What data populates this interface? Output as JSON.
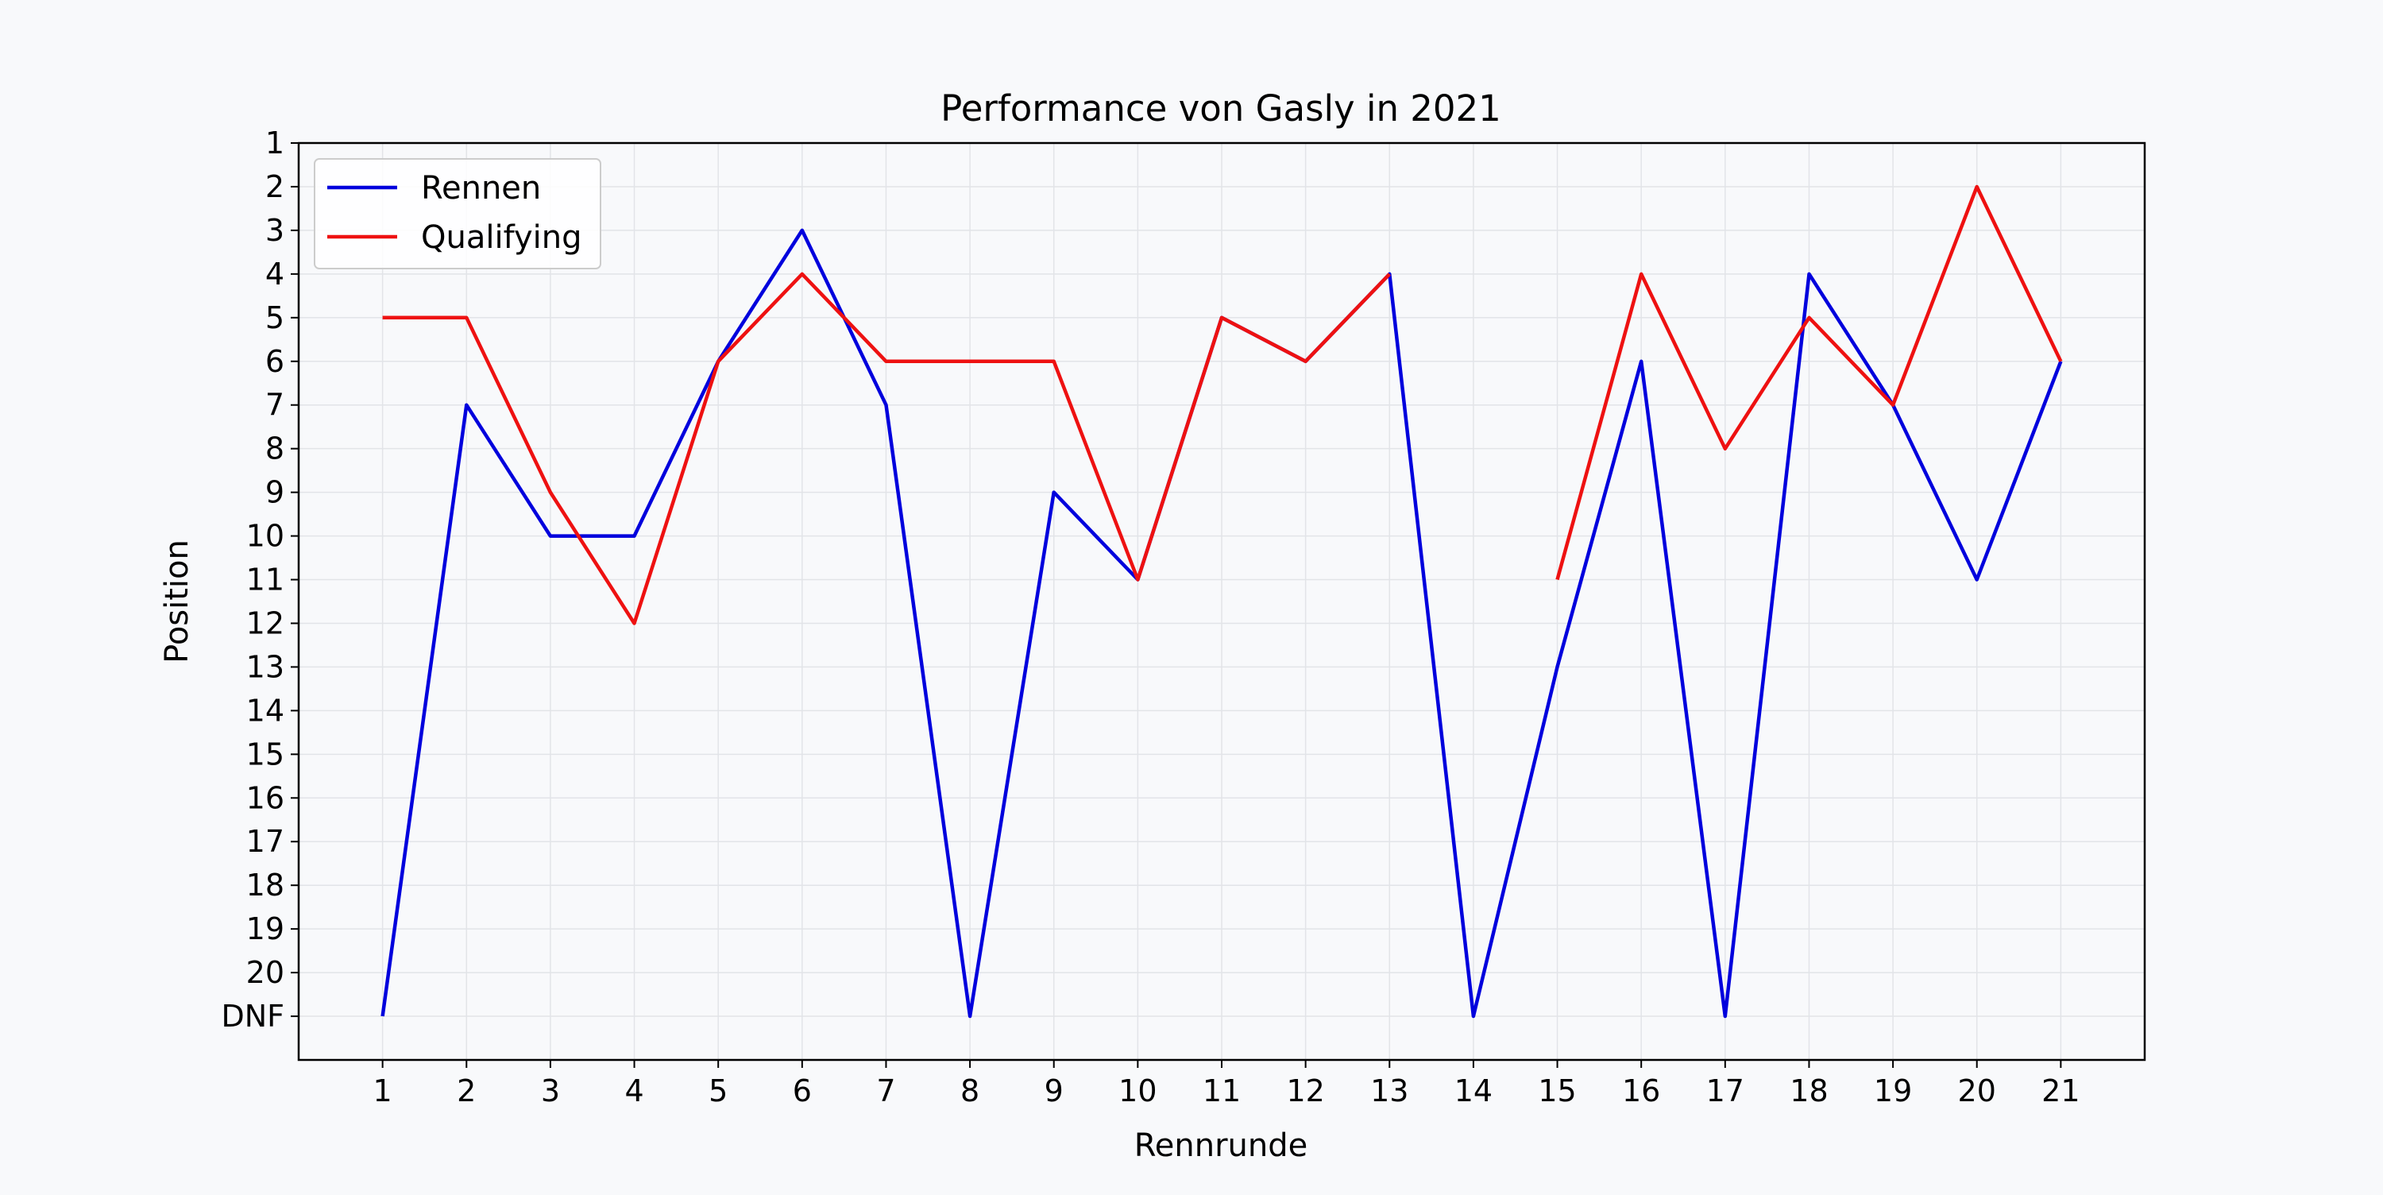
{
  "chart_data": {
    "type": "line",
    "title": "Performance von Gasly in 2021",
    "xlabel": "Rennrunde",
    "ylabel": "Position",
    "x": [
      1,
      2,
      3,
      4,
      5,
      6,
      7,
      8,
      9,
      10,
      11,
      12,
      13,
      14,
      15,
      16,
      17,
      18,
      19,
      20,
      21
    ],
    "x_ticks": [
      "1",
      "2",
      "3",
      "4",
      "5",
      "6",
      "7",
      "8",
      "9",
      "10",
      "11",
      "12",
      "13",
      "14",
      "15",
      "16",
      "17",
      "18",
      "19",
      "20",
      "21"
    ],
    "y_ticks": [
      "1",
      "2",
      "3",
      "4",
      "5",
      "6",
      "7",
      "8",
      "9",
      "10",
      "11",
      "12",
      "13",
      "14",
      "15",
      "16",
      "17",
      "18",
      "19",
      "20",
      "DNF"
    ],
    "y_tick_values": [
      1,
      2,
      3,
      4,
      5,
      6,
      7,
      8,
      9,
      10,
      11,
      12,
      13,
      14,
      15,
      16,
      17,
      18,
      19,
      20,
      21
    ],
    "y_inverted": true,
    "xlim": [
      0,
      22
    ],
    "ylim": [
      22,
      1
    ],
    "grid": true,
    "legend_position": "top-left",
    "series": [
      {
        "name": "Rennen",
        "color": "#0000dd",
        "values": [
          21,
          7,
          10,
          10,
          6,
          3,
          7,
          21,
          9,
          11,
          5,
          6,
          4,
          21,
          13,
          6,
          21,
          4,
          7,
          11,
          6
        ]
      },
      {
        "name": "Qualifying",
        "color": "#ee1111",
        "values": [
          5,
          5,
          9,
          12,
          6,
          4,
          6,
          6,
          6,
          11,
          5,
          6,
          4,
          null,
          11,
          4,
          8,
          5,
          7,
          2,
          6
        ]
      }
    ]
  }
}
